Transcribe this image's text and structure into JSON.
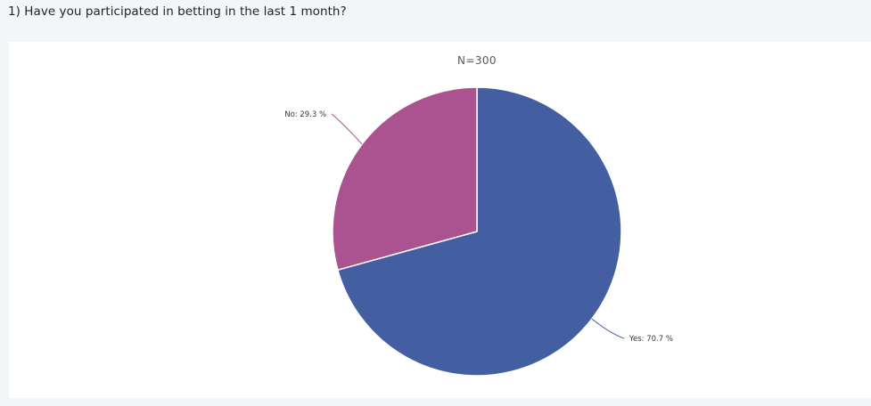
{
  "question": "1) Have you participated in betting in the last 1 month?",
  "chart_data": {
    "type": "pie",
    "subtitle": "N=300",
    "slices": [
      {
        "name": "Yes",
        "value": 70.7,
        "label": "Yes: 70.7 %",
        "color": "#435ea1"
      },
      {
        "name": "No",
        "value": 29.3,
        "label": "No: 29.3 %",
        "color": "#ab5290"
      }
    ],
    "start_angle_deg": 0,
    "direction": "clockwise",
    "legend": "none"
  }
}
